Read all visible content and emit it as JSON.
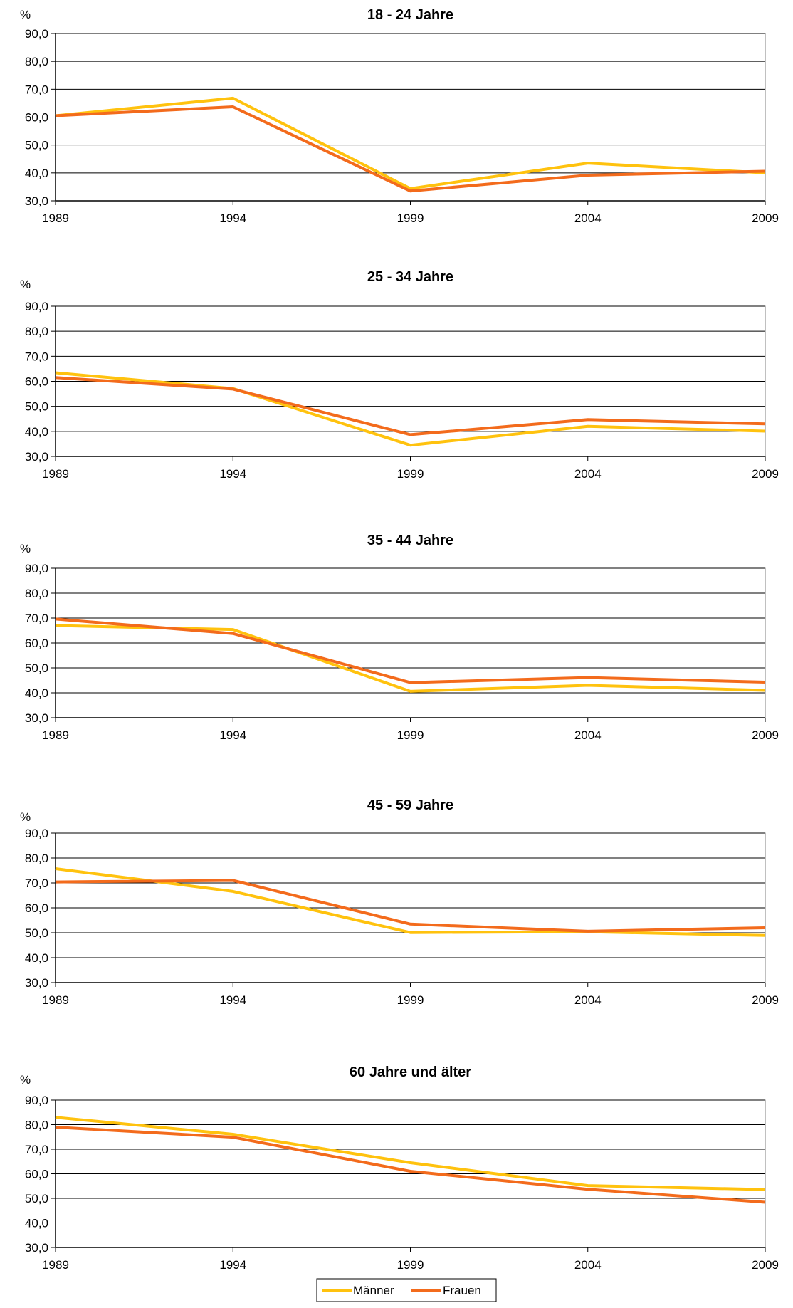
{
  "legend": {
    "items": [
      "Männer",
      "Frauen"
    ]
  },
  "series_colors": {
    "Männer": "#FFC20E",
    "Frauen": "#F36B1C"
  },
  "chart_data": [
    {
      "type": "line",
      "title": "18 - 24 Jahre",
      "ylabel": "%",
      "x": [
        "1989",
        "1994",
        "1999",
        "2004",
        "2009"
      ],
      "ylim": [
        30,
        90
      ],
      "yticks": [
        "30,0",
        "40,0",
        "50,0",
        "60,0",
        "70,0",
        "80,0",
        "90,0"
      ],
      "grid": true,
      "series": [
        {
          "name": "Männer",
          "values": [
            60.5,
            66.8,
            34.4,
            43.5,
            40.0
          ]
        },
        {
          "name": "Frauen",
          "values": [
            60.5,
            63.7,
            33.5,
            39.2,
            40.6
          ]
        }
      ]
    },
    {
      "type": "line",
      "title": "25 - 34 Jahre",
      "ylabel": "%",
      "x": [
        "1989",
        "1994",
        "1999",
        "2004",
        "2009"
      ],
      "ylim": [
        30,
        90
      ],
      "yticks": [
        "30,0",
        "40,0",
        "50,0",
        "60,0",
        "70,0",
        "80,0",
        "90,0"
      ],
      "grid": true,
      "series": [
        {
          "name": "Männer",
          "values": [
            63.4,
            57.1,
            34.5,
            42.0,
            40.1
          ]
        },
        {
          "name": "Frauen",
          "values": [
            61.5,
            56.9,
            38.7,
            44.7,
            43.0
          ]
        }
      ]
    },
    {
      "type": "line",
      "title": "35 - 44 Jahre",
      "ylabel": "%",
      "x": [
        "1989",
        "1994",
        "1999",
        "2004",
        "2009"
      ],
      "ylim": [
        30,
        90
      ],
      "yticks": [
        "30,0",
        "40,0",
        "50,0",
        "60,0",
        "70,0",
        "80,0",
        "90,0"
      ],
      "grid": true,
      "series": [
        {
          "name": "Männer",
          "values": [
            67.0,
            65.4,
            40.6,
            43.0,
            41.0
          ]
        },
        {
          "name": "Frauen",
          "values": [
            69.6,
            63.8,
            44.1,
            46.1,
            44.3
          ]
        }
      ]
    },
    {
      "type": "line",
      "title": "45 - 59 Jahre",
      "ylabel": "%",
      "x": [
        "1989",
        "1994",
        "1999",
        "2004",
        "2009"
      ],
      "ylim": [
        30,
        90
      ],
      "yticks": [
        "30,0",
        "40,0",
        "50,0",
        "60,0",
        "70,0",
        "80,0",
        "90,0"
      ],
      "grid": true,
      "series": [
        {
          "name": "Männer",
          "values": [
            75.7,
            66.6,
            50.1,
            50.4,
            48.9
          ]
        },
        {
          "name": "Frauen",
          "values": [
            70.4,
            71.0,
            53.5,
            50.6,
            52.0
          ]
        }
      ]
    },
    {
      "type": "line",
      "title": "60 Jahre und älter",
      "ylabel": "%",
      "x": [
        "1989",
        "1994",
        "1999",
        "2004",
        "2009"
      ],
      "ylim": [
        30,
        90
      ],
      "yticks": [
        "30,0",
        "40,0",
        "50,0",
        "60,0",
        "70,0",
        "80,0",
        "90,0"
      ],
      "grid": true,
      "series": [
        {
          "name": "Männer",
          "values": [
            83.0,
            76.1,
            64.5,
            55.2,
            53.6
          ]
        },
        {
          "name": "Frauen",
          "values": [
            79.0,
            74.9,
            61.0,
            53.7,
            48.4
          ]
        }
      ]
    }
  ]
}
